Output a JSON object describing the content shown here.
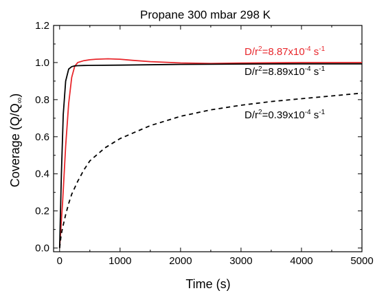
{
  "chart_data": {
    "type": "line",
    "title": "Propane 300 mbar 298 K",
    "xlabel": "Time (s)",
    "ylabel_main": "Coverage (Q/Q",
    "ylabel_sub": "∞",
    "ylabel_close": ")",
    "xlim": [
      -100,
      5000
    ],
    "ylim": [
      -0.02,
      1.2
    ],
    "xticks": [
      0,
      1000,
      2000,
      3000,
      4000,
      5000
    ],
    "yticks": [
      "0.0",
      "0.2",
      "0.4",
      "0.6",
      "0.8",
      "1.0",
      "1.2"
    ],
    "grid": false,
    "series": [
      {
        "color": "#e8262b",
        "dash": "solid",
        "x": [
          0,
          50,
          100,
          150,
          200,
          250,
          300,
          400,
          500,
          600,
          800,
          1000,
          1200,
          1500,
          2000,
          2500,
          3000,
          4000,
          5000
        ],
        "y": [
          0.0,
          0.25,
          0.55,
          0.78,
          0.92,
          0.98,
          1.0,
          1.01,
          1.015,
          1.018,
          1.02,
          1.018,
          1.012,
          1.005,
          0.998,
          0.995,
          0.997,
          1.0,
          1.0
        ]
      },
      {
        "color": "#000000",
        "dash": "solid",
        "x": [
          0,
          30,
          60,
          100,
          150,
          200,
          250,
          300,
          400,
          600,
          1000,
          2000,
          3000,
          4000,
          5000
        ],
        "y": [
          0.0,
          0.4,
          0.72,
          0.9,
          0.965,
          0.978,
          0.982,
          0.983,
          0.984,
          0.985,
          0.986,
          0.99,
          0.992,
          0.993,
          0.993
        ]
      },
      {
        "color": "#000000",
        "dash": "dashed",
        "x": [
          0,
          25,
          50,
          100,
          150,
          200,
          300,
          400,
          500,
          750,
          1000,
          1500,
          2000,
          2500,
          3000,
          3500,
          4000,
          4500,
          5000
        ],
        "y": [
          0.0,
          0.07,
          0.11,
          0.18,
          0.24,
          0.29,
          0.36,
          0.42,
          0.47,
          0.54,
          0.59,
          0.66,
          0.71,
          0.745,
          0.77,
          0.79,
          0.805,
          0.82,
          0.835
        ]
      }
    ],
    "annotations": [
      {
        "color": "#e8262b",
        "base": "D/r",
        "exp1": "2",
        "mid": "=8.87x10",
        "exp2": "-4",
        "unit": " s",
        "exp3": "-1"
      },
      {
        "color": "#000000",
        "base": "D/r",
        "exp1": "2",
        "mid": "=8.89x10",
        "exp2": "-4",
        "unit": " s",
        "exp3": "-1"
      },
      {
        "color": "#000000",
        "base": "D/r",
        "exp1": "2",
        "mid": "=0.39x10",
        "exp2": "-4",
        "unit": " s",
        "exp3": "-1"
      }
    ]
  }
}
